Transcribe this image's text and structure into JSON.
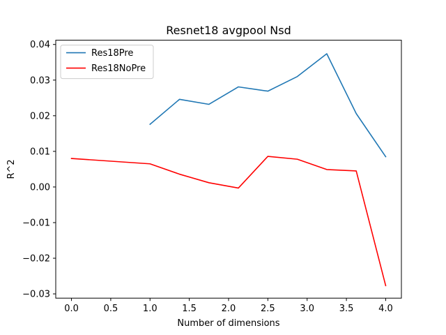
{
  "chart_data": {
    "type": "line",
    "title": "Resnet18 avgpool Nsd",
    "xlabel": "Number of dimensions",
    "ylabel": "R^2",
    "xlim": [
      -0.2,
      4.2
    ],
    "ylim": [
      -0.0312,
      0.0412
    ],
    "xticks": [
      0.0,
      0.5,
      1.0,
      1.5,
      2.0,
      2.5,
      3.0,
      3.5,
      4.0
    ],
    "xtick_labels": [
      "0.0",
      "0.5",
      "1.0",
      "1.5",
      "2.0",
      "2.5",
      "3.0",
      "3.5",
      "4.0"
    ],
    "yticks": [
      -0.03,
      -0.02,
      -0.01,
      0.0,
      0.01,
      0.02,
      0.03,
      0.04
    ],
    "ytick_labels": [
      "−0.03",
      "−0.02",
      "−0.01",
      "0.00",
      "0.01",
      "0.02",
      "0.03",
      "0.04"
    ],
    "grid": false,
    "legend_position": "top-left",
    "series": [
      {
        "name": "Res18Pre",
        "color": "#1f77b4",
        "x": [
          1.0,
          1.375,
          1.75,
          2.125,
          2.5,
          2.875,
          3.25,
          3.625,
          4.0
        ],
        "y": [
          0.0176,
          0.0246,
          0.0232,
          0.0281,
          0.0269,
          0.031,
          0.0374,
          0.0206,
          0.0085
        ]
      },
      {
        "name": "Res18NoPre",
        "color": "#ff0000",
        "x": [
          0.0,
          1.0,
          1.375,
          1.75,
          2.125,
          2.5,
          2.875,
          3.25,
          3.625,
          4.0
        ],
        "y": [
          0.008,
          0.0065,
          0.0036,
          0.0012,
          -0.0003,
          0.0086,
          0.0078,
          0.0049,
          0.0045,
          -0.0277
        ]
      }
    ]
  }
}
